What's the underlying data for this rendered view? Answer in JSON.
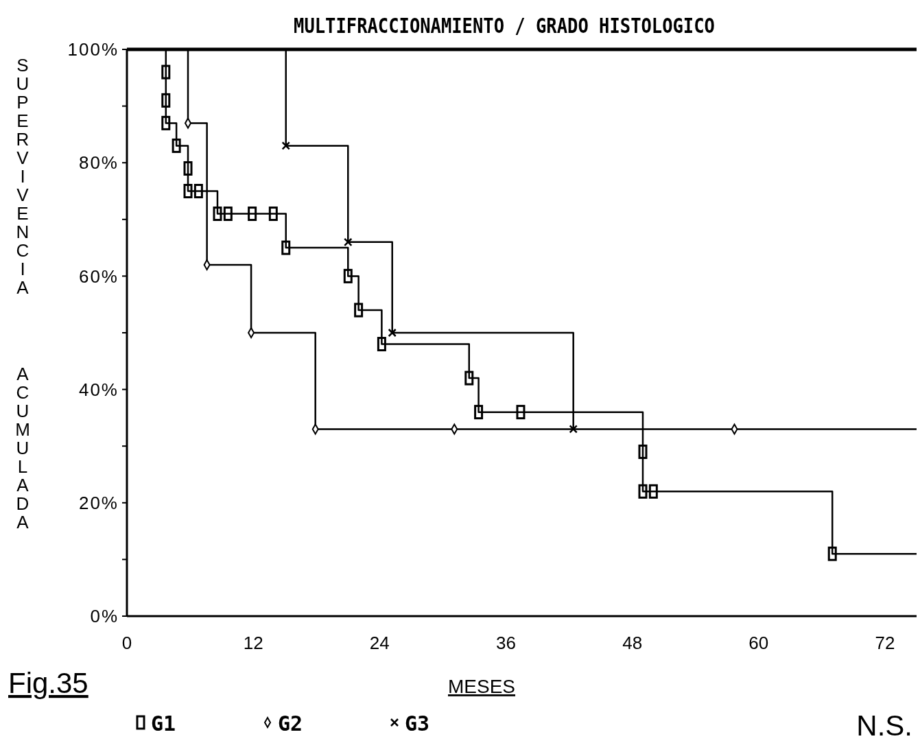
{
  "chart_data": {
    "type": "step",
    "title": "MULTIFRACCIONAMIENTO / GRADO HISTOLOGICO",
    "xlabel": "MESES",
    "ylabel": "SUPERVIVENCIA ACUMULADA",
    "annotations": [
      "Fig.35",
      "N.S."
    ],
    "xlim": [
      0,
      75
    ],
    "xticks": [
      0,
      12,
      24,
      36,
      48,
      60,
      72
    ],
    "ylim": [
      0,
      100
    ],
    "yticks": [
      {
        "value": 0,
        "label": "0%"
      },
      {
        "value": 10,
        "label": null
      },
      {
        "value": 20,
        "label": "20%"
      },
      {
        "value": 30,
        "label": null
      },
      {
        "value": 40,
        "label": "40%"
      },
      {
        "value": 50,
        "label": null
      },
      {
        "value": 60,
        "label": "60%"
      },
      {
        "value": 70,
        "label": null
      },
      {
        "value": 80,
        "label": "80%"
      },
      {
        "value": 90,
        "label": null
      },
      {
        "value": 100,
        "label": "100%"
      }
    ],
    "grid": false,
    "legend": "bottom",
    "line_style": "solid",
    "series": [
      {
        "name": "G1",
        "color": "#000000",
        "marker": "square",
        "x": [
          3.7,
          3.7,
          3.7,
          3.7,
          4.7,
          5.8,
          5.8,
          6.8,
          8.6,
          9.6,
          11.9,
          13.9,
          15.1,
          21,
          22,
          24.2,
          32.5,
          33.4,
          37.4,
          49,
          49,
          50,
          67,
          75
        ],
        "values": [
          100,
          96,
          91,
          87,
          83,
          79,
          75,
          75,
          71,
          71,
          71,
          71,
          65,
          60,
          54,
          48,
          42,
          36,
          36,
          29,
          22,
          22,
          11,
          11
        ]
      },
      {
        "name": "G2",
        "color": "#000000",
        "marker": "diamond",
        "x": [
          5.8,
          5.8,
          7.6,
          11.8,
          17.9,
          31.1,
          57.7,
          75
        ],
        "values": [
          100,
          87,
          62,
          50,
          33,
          33,
          33,
          33
        ]
      },
      {
        "name": "G3",
        "color": "#000000",
        "marker": "cross",
        "x": [
          15.1,
          15.1,
          21,
          25.2,
          42.4
        ],
        "values": [
          100,
          83,
          66,
          50,
          33
        ]
      }
    ]
  }
}
